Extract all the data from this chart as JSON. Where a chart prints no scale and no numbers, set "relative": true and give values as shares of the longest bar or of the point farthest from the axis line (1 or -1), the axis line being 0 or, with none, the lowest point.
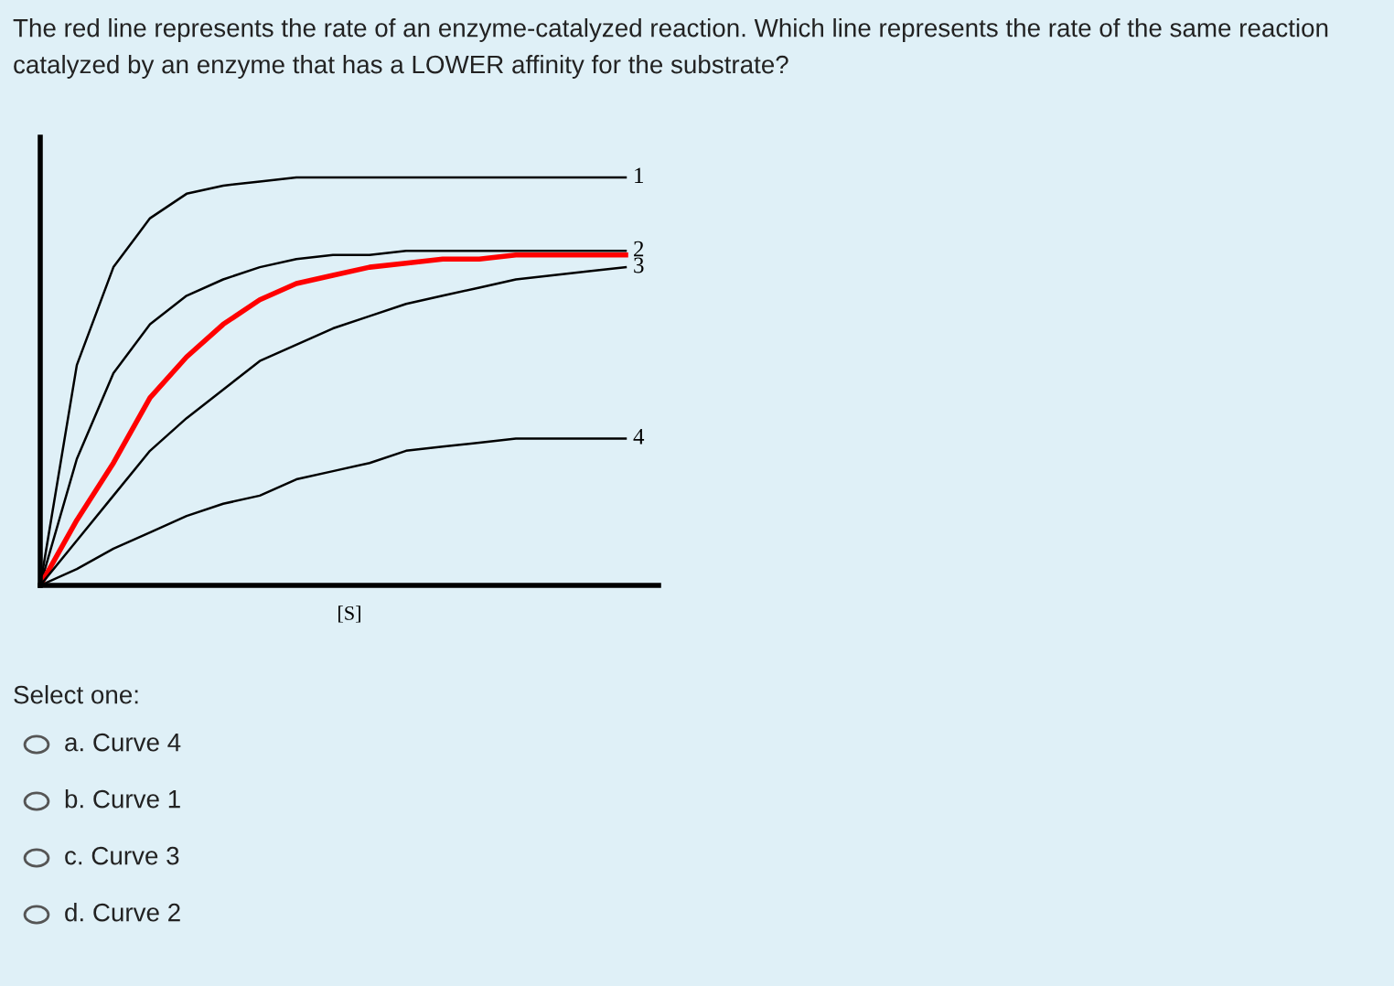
{
  "chart_data": {
    "type": "line",
    "relative": true,
    "title": "The red line represents the rate of an enzyme-catalyzed reaction. Which line represents the rate of the same reaction catalyzed by an enzyme that has a LOWER affinity for the substrate?",
    "xlabel": "[S]",
    "categories": [
      null,
      null,
      null,
      null,
      null,
      null,
      null,
      null,
      null,
      null,
      null,
      null,
      null,
      null,
      null,
      null,
      null
    ],
    "series": [
      {
        "name": "1",
        "color": "#000000",
        "values": [
          0,
          0.54,
          0.78,
          0.9,
          0.96,
          0.98,
          0.99,
          1,
          1,
          1,
          1,
          1,
          1,
          1,
          1,
          1,
          1
        ]
      },
      {
        "name": "2",
        "color": "#000000",
        "values": [
          0,
          0.31,
          0.52,
          0.64,
          0.71,
          0.75,
          0.78,
          0.8,
          0.81,
          0.81,
          0.82,
          0.82,
          0.82,
          0.82,
          0.82,
          0.82,
          0.82
        ]
      },
      {
        "color": "#ff0000",
        "values": [
          0,
          0.16,
          0.3,
          0.46,
          0.56,
          0.64,
          0.7,
          0.74,
          0.76,
          0.78,
          0.79,
          0.8,
          0.8,
          0.81,
          0.81,
          0.81,
          0.81
        ]
      },
      {
        "name": "3",
        "color": "#000000",
        "values": [
          0,
          0.11,
          0.22,
          0.33,
          0.41,
          0.48,
          0.55,
          0.59,
          0.63,
          0.66,
          0.69,
          0.71,
          0.73,
          0.75,
          0.76,
          0.77,
          0.78
        ]
      },
      {
        "name": "4",
        "color": "#000000",
        "values": [
          0,
          0.04,
          0.09,
          0.13,
          0.17,
          0.2,
          0.22,
          0.26,
          0.28,
          0.3,
          0.33,
          0.34,
          0.35,
          0.36,
          0.36,
          0.36,
          0.36
        ]
      }
    ],
    "annotations": [
      "Select one:",
      "a. Curve 4",
      "b. Curve 1",
      "c. Curve 3",
      "d. Curve 2"
    ]
  }
}
